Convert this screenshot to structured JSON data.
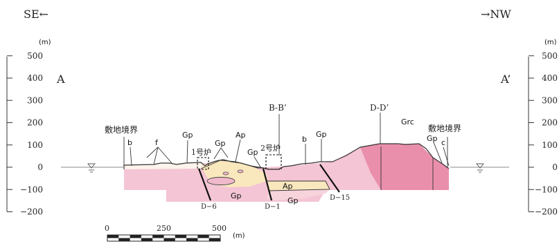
{
  "direction": {
    "left": "SE←",
    "right": "→NW"
  },
  "section_ends": {
    "left": "A",
    "right": "A’"
  },
  "elevation_axis": {
    "unit": "(m)",
    "ticks": [
      "500",
      "400",
      "300",
      "200",
      "100",
      "0",
      "−100",
      "−200"
    ],
    "values": [
      500,
      400,
      300,
      200,
      100,
      0,
      -100,
      -200
    ]
  },
  "boundary_labels": [
    "敷地境界",
    "敷地境界"
  ],
  "cross_sections": [
    "B-B’",
    "D-D’"
  ],
  "reactors": [
    "1号炉",
    "2号炉"
  ],
  "boreholes": [
    "D−6",
    "D−1",
    "D−15"
  ],
  "geology_labels": {
    "b_left": "b",
    "f": "f",
    "gp_1": "Gp",
    "gp_2": "Gp",
    "ap_1": "Ap",
    "gp_3": "Gp",
    "b_right": "b",
    "gp_4": "Gp",
    "grc": "Grc",
    "gp_5": "Gp",
    "c": "c",
    "gp_6": "Gp",
    "ap_2": "Ap",
    "gp_7": "Gp"
  },
  "scale_bar": {
    "labels": [
      "0",
      "250",
      "500"
    ],
    "unit": "(m)"
  },
  "colors": {
    "pink": "#f4c5d4",
    "deep_pink": "#e98fac",
    "cream": "#f9e7bd",
    "light": "#fbf3ec",
    "sea_line": "#888888"
  }
}
